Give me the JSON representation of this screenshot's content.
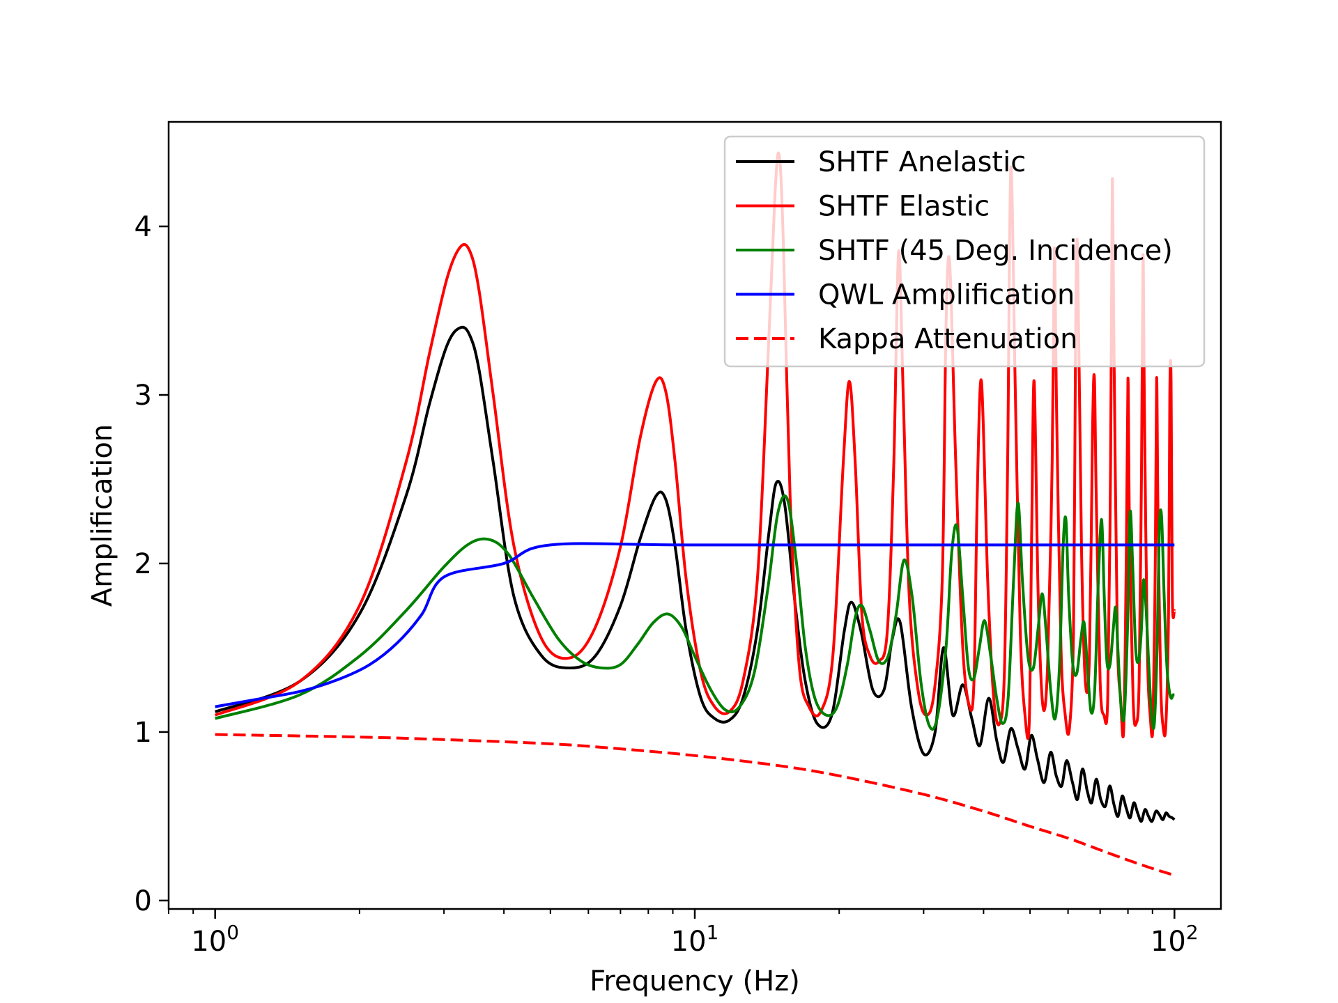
{
  "chart_data": {
    "type": "line",
    "xlabel": "Frequency (Hz)",
    "ylabel": "Amplification",
    "xscale": "log",
    "xlim": [
      0.8,
      125
    ],
    "ylim": [
      -0.05,
      4.62
    ],
    "grid": false,
    "legend_position": "top-right",
    "x_ticks": [
      {
        "value": 1,
        "base": "10",
        "exp": "0"
      },
      {
        "value": 10,
        "base": "10",
        "exp": "1"
      },
      {
        "value": 100,
        "base": "10",
        "exp": "2"
      }
    ],
    "y_ticks": [
      {
        "value": 0,
        "label": "0"
      },
      {
        "value": 1,
        "label": "1"
      },
      {
        "value": 2,
        "label": "2"
      },
      {
        "value": 3,
        "label": "3"
      },
      {
        "value": 4,
        "label": "4"
      }
    ],
    "series": [
      {
        "name": "SHTF Anelastic",
        "color": "#000000",
        "dash": false,
        "x": [
          1.0,
          1.5,
          2.0,
          2.5,
          2.8,
          3.05,
          3.25,
          3.4,
          3.55,
          3.8,
          4.2,
          4.8,
          5.5,
          6.2,
          7.0,
          7.7,
          8.3,
          8.7,
          9.1,
          9.6,
          10.3,
          11.0,
          11.8,
          12.6,
          13.5,
          14.3,
          14.8,
          15.4,
          16.2,
          17.0,
          18.0,
          19.3,
          20.5,
          21.2,
          22.2,
          23.5,
          24.8,
          25.8,
          26.8,
          28.3,
          30.0,
          31.7,
          33.0,
          34.5,
          36.2,
          37.8,
          39.3,
          41.0,
          42.6,
          44.0,
          45.6,
          47.2,
          48.8,
          50.3,
          51.8,
          53.5,
          55.2,
          56.7,
          58.2,
          59.6,
          61.3,
          62.8,
          64.3,
          65.8,
          67.2,
          68.7,
          70.2,
          71.8,
          73.3,
          74.8,
          76.3,
          77.8,
          79.3,
          80.8,
          82.3,
          83.8,
          85.3,
          86.8,
          88.3,
          89.8,
          91.5,
          93.0,
          94.6,
          96.0,
          97.5,
          99.0,
          100.0
        ],
        "y": [
          1.12,
          1.3,
          1.7,
          2.4,
          2.95,
          3.3,
          3.4,
          3.35,
          3.15,
          2.6,
          1.8,
          1.45,
          1.38,
          1.45,
          1.75,
          2.15,
          2.4,
          2.38,
          2.1,
          1.6,
          1.2,
          1.08,
          1.07,
          1.2,
          1.6,
          2.2,
          2.48,
          2.35,
          1.75,
          1.3,
          1.05,
          1.1,
          1.6,
          1.77,
          1.6,
          1.25,
          1.25,
          1.55,
          1.65,
          1.15,
          0.87,
          1.0,
          1.5,
          1.1,
          1.28,
          1.08,
          0.92,
          1.2,
          0.95,
          0.82,
          1.02,
          0.9,
          0.78,
          0.98,
          0.84,
          0.7,
          0.88,
          0.74,
          0.68,
          0.83,
          0.7,
          0.6,
          0.78,
          0.65,
          0.58,
          0.72,
          0.6,
          0.56,
          0.68,
          0.57,
          0.5,
          0.62,
          0.55,
          0.49,
          0.58,
          0.52,
          0.47,
          0.54,
          0.5,
          0.47,
          0.53,
          0.51,
          0.48,
          0.52,
          0.5,
          0.49,
          0.48
        ]
      },
      {
        "name": "SHTF Elastic",
        "color": "#ff0000",
        "dash": false,
        "x": [
          1.0,
          1.5,
          2.0,
          2.5,
          2.8,
          3.05,
          3.25,
          3.4,
          3.55,
          3.8,
          4.2,
          4.8,
          5.5,
          6.2,
          7.0,
          7.7,
          8.3,
          8.7,
          9.1,
          9.6,
          10.3,
          11.0,
          11.8,
          12.6,
          13.5,
          14.2,
          14.7,
          15.0,
          15.3,
          15.8,
          16.5,
          17.3,
          18.3,
          19.4,
          20.4,
          21.0,
          21.6,
          22.3,
          23.2,
          24.2,
          25.2,
          26.0,
          26.6,
          27.2,
          28.0,
          29.2,
          30.4,
          31.6,
          32.8,
          33.4,
          34.0,
          35.0,
          36.2,
          37.4,
          38.2,
          38.8,
          39.6,
          40.8,
          42.0,
          43.2,
          44.2,
          44.9,
          45.6,
          46.6,
          47.7,
          48.8,
          49.8,
          50.4,
          51.0,
          52.0,
          53.2,
          54.4,
          55.6,
          56.2,
          56.8,
          58.0,
          59.2,
          60.4,
          61.6,
          62.2,
          62.8,
          64.0,
          65.2,
          66.5,
          67.5,
          68.1,
          68.7,
          70.0,
          71.3,
          72.6,
          73.6,
          74.2,
          74.8,
          76.0,
          77.2,
          78.4,
          79.4,
          80.0,
          80.6,
          82.0,
          83.2,
          84.4,
          85.4,
          86.0,
          86.6,
          87.8,
          89.0,
          90.2,
          91.2,
          91.8,
          92.4,
          93.6,
          94.8,
          96.0,
          97.2,
          97.8,
          98.4,
          99.0,
          100.0
        ],
        "y": [
          1.1,
          1.3,
          1.75,
          2.6,
          3.25,
          3.7,
          3.88,
          3.85,
          3.62,
          3.0,
          2.1,
          1.55,
          1.44,
          1.62,
          2.1,
          2.75,
          3.08,
          3.02,
          2.6,
          1.9,
          1.35,
          1.15,
          1.12,
          1.3,
          1.9,
          3.2,
          4.2,
          4.42,
          3.9,
          2.4,
          1.4,
          1.15,
          1.12,
          1.45,
          2.6,
          3.08,
          2.6,
          1.7,
          1.45,
          1.42,
          1.6,
          2.6,
          3.85,
          3.0,
          1.8,
          1.25,
          1.1,
          1.25,
          1.9,
          3.4,
          3.78,
          2.6,
          1.5,
          1.15,
          1.3,
          2.4,
          3.08,
          1.9,
          1.2,
          1.05,
          1.35,
          2.6,
          4.35,
          3.0,
          1.6,
          1.1,
          1.05,
          2.2,
          3.08,
          1.8,
          1.15,
          1.4,
          2.6,
          3.87,
          2.9,
          1.5,
          1.1,
          1.02,
          1.6,
          3.3,
          3.87,
          2.1,
          1.3,
          1.45,
          2.8,
          3.1,
          2.4,
          1.3,
          1.1,
          1.2,
          2.6,
          4.27,
          3.3,
          1.6,
          1.2,
          1.02,
          2.1,
          3.1,
          2.2,
          1.2,
          1.05,
          1.3,
          2.6,
          3.83,
          2.9,
          1.5,
          1.1,
          1.04,
          2.0,
          3.1,
          2.3,
          1.3,
          1.02,
          1.05,
          1.7,
          3.0,
          3.08,
          1.8,
          1.72
        ]
      },
      {
        "name": "SHTF (45 Deg. Incidence)",
        "color": "#008000",
        "dash": false,
        "x": [
          1.0,
          1.5,
          2.0,
          2.5,
          3.0,
          3.4,
          3.75,
          4.1,
          4.6,
          5.2,
          5.8,
          6.4,
          7.0,
          7.6,
          8.2,
          8.8,
          9.4,
          10.0,
          10.8,
          11.6,
          12.4,
          13.3,
          14.2,
          14.9,
          15.6,
          16.3,
          17.0,
          17.8,
          18.8,
          19.8,
          20.8,
          21.6,
          22.3,
          23.2,
          24.2,
          25.3,
          26.3,
          27.3,
          28.4,
          29.6,
          30.8,
          32.0,
          33.4,
          34.3,
          35.2,
          36.2,
          37.2,
          38.2,
          39.2,
          40.2,
          41.4,
          42.6,
          43.8,
          45.0,
          46.2,
          47.2,
          48.2,
          49.5,
          50.8,
          52.0,
          53.0,
          54.0,
          55.2,
          56.4,
          57.6,
          58.6,
          59.4,
          60.2,
          61.4,
          62.6,
          63.8,
          64.8,
          65.8,
          67.0,
          68.2,
          69.4,
          70.5,
          71.4,
          72.3,
          73.4,
          74.5,
          75.4,
          76.2,
          77.4,
          78.6,
          79.8,
          80.8,
          81.8,
          83.0,
          84.2,
          85.3,
          86.2,
          87.2,
          88.4,
          89.6,
          90.8,
          92.0,
          93.0,
          94.0,
          95.2,
          96.4,
          97.5,
          98.5,
          99.3,
          100.0
        ],
        "y": [
          1.08,
          1.22,
          1.45,
          1.72,
          1.98,
          2.12,
          2.14,
          2.05,
          1.8,
          1.55,
          1.42,
          1.38,
          1.4,
          1.52,
          1.65,
          1.7,
          1.62,
          1.45,
          1.25,
          1.13,
          1.15,
          1.35,
          1.85,
          2.3,
          2.38,
          2.0,
          1.5,
          1.2,
          1.1,
          1.15,
          1.4,
          1.68,
          1.75,
          1.6,
          1.42,
          1.45,
          1.7,
          2.02,
          1.8,
          1.3,
          1.04,
          1.08,
          1.5,
          2.05,
          2.22,
          1.8,
          1.38,
          1.32,
          1.5,
          1.66,
          1.45,
          1.2,
          1.05,
          1.2,
          1.9,
          2.36,
          1.9,
          1.45,
          1.38,
          1.62,
          1.82,
          1.6,
          1.25,
          1.08,
          1.4,
          2.1,
          2.26,
          1.8,
          1.4,
          1.35,
          1.55,
          1.65,
          1.4,
          1.12,
          1.25,
          1.9,
          2.26,
          1.8,
          1.42,
          1.4,
          1.6,
          1.74,
          1.5,
          1.15,
          1.1,
          1.6,
          2.3,
          2.0,
          1.5,
          1.42,
          1.6,
          1.9,
          1.75,
          1.4,
          1.1,
          1.05,
          1.5,
          2.2,
          2.28,
          1.8,
          1.4,
          1.25,
          1.2,
          1.22,
          1.22
        ]
      },
      {
        "name": "QWL Amplification",
        "color": "#0000ff",
        "dash": false,
        "x": [
          1.0,
          1.2,
          1.5,
          1.8,
          2.1,
          2.4,
          2.7,
          3.0,
          4.0,
          5.0,
          10.0,
          50.0,
          100.0
        ],
        "y": [
          1.15,
          1.19,
          1.24,
          1.31,
          1.4,
          1.53,
          1.7,
          1.92,
          2.0,
          2.11,
          2.11,
          2.11,
          2.11
        ]
      },
      {
        "name": "Kappa Attenuation",
        "color": "#ff0000",
        "dash": true,
        "x": [
          1.0,
          2.0,
          3.0,
          5.0,
          7.0,
          10.0,
          15.0,
          20.0,
          30.0,
          40.0,
          50.0,
          60.0,
          70.0,
          80.0,
          90.0,
          100.0
        ],
        "y": [
          0.985,
          0.97,
          0.955,
          0.93,
          0.9,
          0.86,
          0.8,
          0.74,
          0.63,
          0.53,
          0.44,
          0.37,
          0.3,
          0.24,
          0.19,
          0.15
        ]
      }
    ]
  }
}
